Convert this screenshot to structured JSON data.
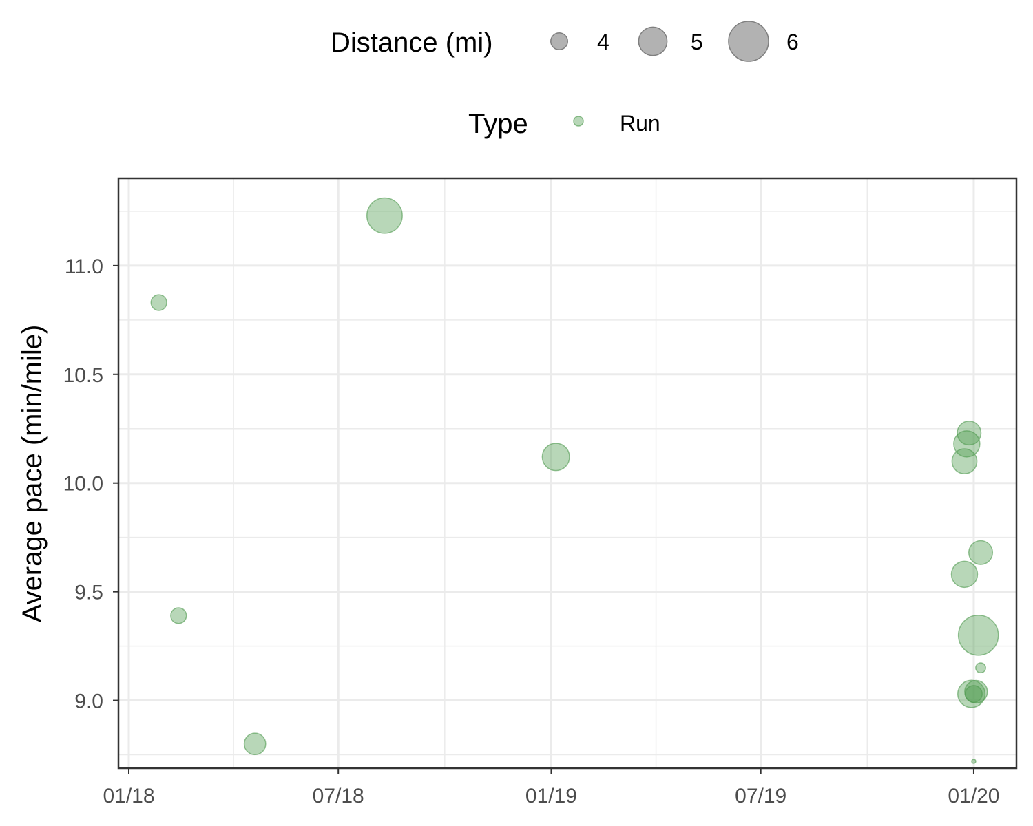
{
  "chart_data": {
    "type": "scatter",
    "x_type": "date",
    "ylabel": "Average pace (min/mile)",
    "xlabel": "",
    "xlim": [
      "2018-01-01",
      "2020-01-29"
    ],
    "ylim": [
      8.72,
      11.37
    ],
    "x_ticks": [
      {
        "date": "2018-01-01",
        "label": "01/18"
      },
      {
        "date": "2018-07-01",
        "label": "07/18"
      },
      {
        "date": "2019-01-01",
        "label": "01/19"
      },
      {
        "date": "2019-07-01",
        "label": "07/19"
      },
      {
        "date": "2020-01-01",
        "label": "01/20"
      }
    ],
    "y_ticks": [
      9.0,
      9.5,
      10.0,
      10.5,
      11.0
    ],
    "y_tick_labels": [
      "9.0",
      "9.5",
      "10.0",
      "10.5",
      "11.0"
    ],
    "grid": true,
    "legend_position": "top",
    "legends": {
      "size": {
        "title": "Distance (mi)",
        "entries": [
          4,
          5,
          6
        ]
      },
      "color": {
        "title": "Type",
        "entries": [
          "Run"
        ]
      }
    },
    "colors": {
      "Run": "#4e9a4e",
      "legend_size_key": "#7f7f7f"
    },
    "series": [
      {
        "name": "Run",
        "points": [
          {
            "date": "2018-01-27",
            "pace": 10.83,
            "distance": 3.9
          },
          {
            "date": "2018-02-13",
            "pace": 9.39,
            "distance": 3.9
          },
          {
            "date": "2018-04-20",
            "pace": 8.8,
            "distance": 4.4
          },
          {
            "date": "2018-08-10",
            "pace": 11.23,
            "distance": 5.6
          },
          {
            "date": "2019-01-05",
            "pace": 10.12,
            "distance": 4.9
          },
          {
            "date": "2019-12-28",
            "pace": 10.23,
            "distance": 4.6
          },
          {
            "date": "2019-12-26",
            "pace": 10.18,
            "distance": 4.8
          },
          {
            "date": "2019-12-24",
            "pace": 10.1,
            "distance": 4.7
          },
          {
            "date": "2020-01-07",
            "pace": 9.68,
            "distance": 4.6
          },
          {
            "date": "2019-12-24",
            "pace": 9.58,
            "distance": 4.8
          },
          {
            "date": "2020-01-05",
            "pace": 9.3,
            "distance": 6.0
          },
          {
            "date": "2020-01-07",
            "pace": 9.15,
            "distance": 3.4
          },
          {
            "date": "2019-12-30",
            "pace": 9.03,
            "distance": 4.9
          },
          {
            "date": "2020-01-03",
            "pace": 9.04,
            "distance": 4.5
          },
          {
            "date": "2020-01-01",
            "pace": 9.03,
            "distance": 4.0
          },
          {
            "date": "2020-01-01",
            "pace": 8.72,
            "distance": 2.9
          }
        ]
      }
    ]
  }
}
